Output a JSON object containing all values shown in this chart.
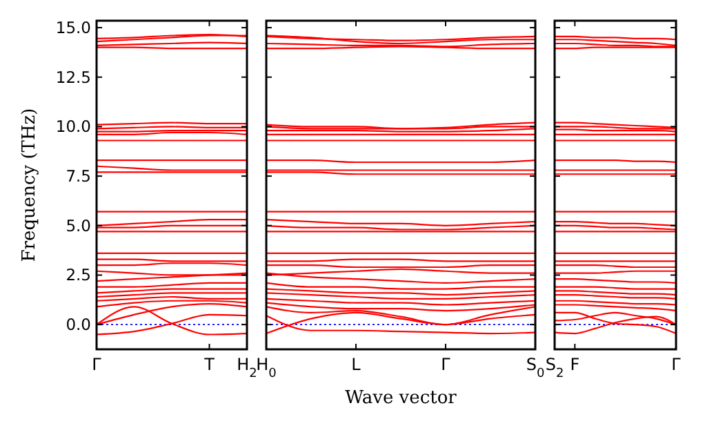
{
  "chart_data": [
    {
      "type": "line",
      "ylabel": "Frequency (THz)",
      "categories": [
        "Γ",
        null,
        null,
        "T",
        "H$_{2}$"
      ],
      "ylim": [
        -1.25,
        15.35
      ],
      "yticks": [
        {
          "value": 0,
          "label": "0.0"
        },
        {
          "value": 2.5,
          "label": "2.5"
        },
        {
          "value": 5,
          "label": "5.0"
        },
        {
          "value": 7.5,
          "label": "7.5"
        },
        {
          "value": 10,
          "label": "10.0"
        },
        {
          "value": 12.5,
          "label": "12.5"
        },
        {
          "value": 15,
          "label": "15.0"
        }
      ],
      "line_style": "solid",
      "ref_lines": [
        {
          "axis": "y",
          "value": 0,
          "color": "#0000ff",
          "line_style": "dotted"
        }
      ],
      "series": [
        {
          "color": "#ff0000",
          "values": [
            14.0,
            14.0,
            13.95,
            13.95,
            13.95
          ]
        },
        {
          "color": "#ff0000",
          "values": [
            14.1,
            14.15,
            14.2,
            14.25,
            14.2
          ]
        },
        {
          "color": "#ff0000",
          "values": [
            14.3,
            14.4,
            14.5,
            14.6,
            14.6
          ]
        },
        {
          "color": "#ff0000",
          "values": [
            14.45,
            14.5,
            14.6,
            14.65,
            14.55
          ]
        },
        {
          "color": "#ff0000",
          "values": [
            9.3,
            9.3,
            9.3,
            9.3,
            9.3
          ]
        },
        {
          "color": "#ff0000",
          "values": [
            9.6,
            9.6,
            9.7,
            9.7,
            9.6
          ]
        },
        {
          "color": "#ff0000",
          "values": [
            9.75,
            9.75,
            9.8,
            9.8,
            9.8
          ]
        },
        {
          "color": "#ff0000",
          "values": [
            9.9,
            9.95,
            10.0,
            9.95,
            9.95
          ]
        },
        {
          "color": "#ff0000",
          "values": [
            10.1,
            10.15,
            10.2,
            10.15,
            10.15
          ]
        },
        {
          "color": "#ff0000",
          "values": [
            7.7,
            7.7,
            7.7,
            7.7,
            7.7
          ]
        },
        {
          "color": "#ff0000",
          "values": [
            8.0,
            7.9,
            7.8,
            7.8,
            7.8
          ]
        },
        {
          "color": "#ff0000",
          "values": [
            8.3,
            8.3,
            8.3,
            8.3,
            8.3
          ]
        },
        {
          "color": "#ff0000",
          "values": [
            4.7,
            4.7,
            4.7,
            4.7,
            4.7
          ]
        },
        {
          "color": "#ff0000",
          "values": [
            4.9,
            4.9,
            5.0,
            5.0,
            5.0
          ]
        },
        {
          "color": "#ff0000",
          "values": [
            5.0,
            5.1,
            5.2,
            5.3,
            5.3
          ]
        },
        {
          "color": "#ff0000",
          "values": [
            5.7,
            5.7,
            5.7,
            5.7,
            5.7
          ]
        },
        {
          "color": "#ff0000",
          "values": [
            3.6,
            3.6,
            3.6,
            3.6,
            3.6
          ]
        },
        {
          "color": "#ff0000",
          "values": [
            3.3,
            3.3,
            3.2,
            3.2,
            3.2
          ]
        },
        {
          "color": "#ff0000",
          "values": [
            3.0,
            3.0,
            3.1,
            3.1,
            3.0
          ]
        },
        {
          "color": "#ff0000",
          "values": [
            2.7,
            2.6,
            2.5,
            2.5,
            2.5
          ]
        },
        {
          "color": "#ff0000",
          "values": [
            2.2,
            2.3,
            2.4,
            2.5,
            2.6
          ]
        },
        {
          "color": "#ff0000",
          "values": [
            1.9,
            1.9,
            2.0,
            2.1,
            2.1
          ]
        },
        {
          "color": "#ff0000",
          "values": [
            1.6,
            1.7,
            1.8,
            1.8,
            1.8
          ]
        },
        {
          "color": "#ff0000",
          "values": [
            1.4,
            1.5,
            1.6,
            1.6,
            1.6
          ]
        },
        {
          "color": "#ff0000",
          "values": [
            1.2,
            1.3,
            1.4,
            1.3,
            1.3
          ]
        },
        {
          "color": "#ff0000",
          "values": [
            0.9,
            1.1,
            1.2,
            1.2,
            1.1
          ]
        },
        {
          "color": "#ff0000",
          "values": [
            0,
            0.9,
            0.05,
            -0.5,
            -0.45
          ]
        },
        {
          "color": "#ff0000",
          "values": [
            -0.5,
            -0.35,
            0.05,
            0.5,
            0.45
          ]
        },
        {
          "color": "#ff0000",
          "values": [
            0,
            0.5,
            0.9,
            1.05,
            0.9
          ]
        }
      ]
    },
    {
      "type": "line",
      "xlabel": "Wave vector",
      "categories": [
        "H$_{0}$",
        null,
        "L",
        null,
        "Γ",
        null,
        "S$_{0}$"
      ],
      "ylim": [
        -1.25,
        15.35
      ],
      "yticks": [
        {
          "value": 0,
          "label": null
        },
        {
          "value": 2.5,
          "label": null
        },
        {
          "value": 5,
          "label": null
        },
        {
          "value": 7.5,
          "label": null
        },
        {
          "value": 10,
          "label": null
        },
        {
          "value": 12.5,
          "label": null
        },
        {
          "value": 15,
          "label": null
        }
      ],
      "tick_labels": "x",
      "line_style": "solid",
      "ref_lines": [
        {
          "axis": "y",
          "value": 0,
          "color": "#0000ff",
          "line_style": "dotted"
        }
      ],
      "series": [
        {
          "color": "#ff0000",
          "values": [
            13.95,
            13.95,
            14.0,
            14.05,
            14.0,
            13.95,
            13.95
          ]
        },
        {
          "color": "#ff0000",
          "values": [
            14.2,
            14.15,
            14.1,
            14.1,
            14.05,
            14.15,
            14.2
          ]
        },
        {
          "color": "#ff0000",
          "values": [
            14.6,
            14.5,
            14.3,
            14.2,
            14.3,
            14.4,
            14.4
          ]
        },
        {
          "color": "#ff0000",
          "values": [
            14.55,
            14.45,
            14.4,
            14.35,
            14.4,
            14.5,
            14.55
          ]
        },
        {
          "color": "#ff0000",
          "values": [
            9.3,
            9.3,
            9.3,
            9.3,
            9.3,
            9.3,
            9.3
          ]
        },
        {
          "color": "#ff0000",
          "values": [
            9.6,
            9.6,
            9.6,
            9.6,
            9.6,
            9.6,
            9.6
          ]
        },
        {
          "color": "#ff0000",
          "values": [
            9.8,
            9.8,
            9.8,
            9.75,
            9.75,
            9.8,
            9.9
          ]
        },
        {
          "color": "#ff0000",
          "values": [
            10.0,
            9.9,
            9.9,
            9.9,
            9.9,
            10.0,
            10.0
          ]
        },
        {
          "color": "#ff0000",
          "values": [
            10.1,
            10.0,
            10.0,
            9.9,
            9.95,
            10.1,
            10.2
          ]
        },
        {
          "color": "#ff0000",
          "values": [
            7.7,
            7.7,
            7.6,
            7.6,
            7.6,
            7.6,
            7.6
          ]
        },
        {
          "color": "#ff0000",
          "values": [
            7.8,
            7.8,
            7.8,
            7.8,
            7.8,
            7.8,
            7.8
          ]
        },
        {
          "color": "#ff0000",
          "values": [
            8.3,
            8.3,
            8.2,
            8.2,
            8.2,
            8.2,
            8.3
          ]
        },
        {
          "color": "#ff0000",
          "values": [
            4.7,
            4.7,
            4.7,
            4.7,
            4.7,
            4.7,
            4.7
          ]
        },
        {
          "color": "#ff0000",
          "values": [
            5.0,
            4.9,
            4.9,
            4.8,
            4.8,
            4.9,
            5.0
          ]
        },
        {
          "color": "#ff0000",
          "values": [
            5.3,
            5.2,
            5.1,
            5.1,
            5.0,
            5.1,
            5.2
          ]
        },
        {
          "color": "#ff0000",
          "values": [
            5.7,
            5.7,
            5.7,
            5.7,
            5.7,
            5.7,
            5.7
          ]
        },
        {
          "color": "#ff0000",
          "values": [
            3.6,
            3.6,
            3.6,
            3.6,
            3.6,
            3.6,
            3.6
          ]
        },
        {
          "color": "#ff0000",
          "values": [
            3.2,
            3.2,
            3.3,
            3.3,
            3.2,
            3.2,
            3.2
          ]
        },
        {
          "color": "#ff0000",
          "values": [
            3.0,
            3.0,
            2.9,
            2.9,
            2.9,
            3.0,
            3.0
          ]
        },
        {
          "color": "#ff0000",
          "values": [
            2.5,
            2.6,
            2.7,
            2.8,
            2.7,
            2.6,
            2.6
          ]
        },
        {
          "color": "#ff0000",
          "values": [
            2.6,
            2.4,
            2.3,
            2.2,
            2.1,
            2.2,
            2.3
          ]
        },
        {
          "color": "#ff0000",
          "values": [
            2.1,
            1.9,
            1.9,
            1.8,
            1.8,
            1.9,
            1.9
          ]
        },
        {
          "color": "#ff0000",
          "values": [
            1.8,
            1.7,
            1.6,
            1.6,
            1.5,
            1.6,
            1.7
          ]
        },
        {
          "color": "#ff0000",
          "values": [
            1.6,
            1.5,
            1.4,
            1.3,
            1.3,
            1.4,
            1.5
          ]
        },
        {
          "color": "#ff0000",
          "values": [
            1.3,
            1.2,
            1.1,
            1.1,
            1.0,
            1.1,
            1.2
          ]
        },
        {
          "color": "#ff0000",
          "values": [
            1.1,
            0.9,
            0.8,
            0.8,
            0.7,
            0.8,
            1.0
          ]
        },
        {
          "color": "#ff0000",
          "values": [
            -0.45,
            0.3,
            0.6,
            0.3,
            0,
            0.3,
            0.5
          ]
        },
        {
          "color": "#ff0000",
          "values": [
            0.45,
            -0.3,
            -0.3,
            -0.35,
            -0.4,
            -0.45,
            -0.4
          ]
        },
        {
          "color": "#ff0000",
          "values": [
            0.9,
            0.6,
            0.7,
            0.4,
            0,
            0.5,
            0.9
          ]
        }
      ]
    },
    {
      "type": "line",
      "categories": [
        "S$_{2}$",
        "F",
        null,
        null,
        null,
        null,
        "Γ"
      ],
      "ylim": [
        -1.25,
        15.35
      ],
      "yticks": [
        {
          "value": 0,
          "label": null
        },
        {
          "value": 2.5,
          "label": null
        },
        {
          "value": 5,
          "label": null
        },
        {
          "value": 7.5,
          "label": null
        },
        {
          "value": 10,
          "label": null
        },
        {
          "value": 12.5,
          "label": null
        },
        {
          "value": 15,
          "label": null
        }
      ],
      "tick_labels": "x",
      "line_style": "solid",
      "ref_lines": [
        {
          "axis": "y",
          "value": 0,
          "color": "#0000ff",
          "line_style": "dotted"
        }
      ],
      "series": [
        {
          "color": "#ff0000",
          "values": [
            13.95,
            13.95,
            14.0,
            14.0,
            14.0,
            14.0,
            14.0
          ]
        },
        {
          "color": "#ff0000",
          "values": [
            14.2,
            14.2,
            14.15,
            14.1,
            14.1,
            14.05,
            14.05
          ]
        },
        {
          "color": "#ff0000",
          "values": [
            14.4,
            14.4,
            14.35,
            14.3,
            14.25,
            14.2,
            14.1
          ]
        },
        {
          "color": "#ff0000",
          "values": [
            14.55,
            14.55,
            14.5,
            14.5,
            14.45,
            14.45,
            14.4
          ]
        },
        {
          "color": "#ff0000",
          "values": [
            9.3,
            9.3,
            9.3,
            9.3,
            9.3,
            9.3,
            9.3
          ]
        },
        {
          "color": "#ff0000",
          "values": [
            9.6,
            9.6,
            9.6,
            9.6,
            9.6,
            9.6,
            9.6
          ]
        },
        {
          "color": "#ff0000",
          "values": [
            9.85,
            9.85,
            9.8,
            9.8,
            9.8,
            9.8,
            9.75
          ]
        },
        {
          "color": "#ff0000",
          "values": [
            10.0,
            10.0,
            10.0,
            9.95,
            9.9,
            9.9,
            9.9
          ]
        },
        {
          "color": "#ff0000",
          "values": [
            10.2,
            10.2,
            10.15,
            10.1,
            10.05,
            10.0,
            9.95
          ]
        },
        {
          "color": "#ff0000",
          "values": [
            7.6,
            7.6,
            7.6,
            7.6,
            7.6,
            7.6,
            7.6
          ]
        },
        {
          "color": "#ff0000",
          "values": [
            7.8,
            7.8,
            7.8,
            7.8,
            7.8,
            7.8,
            7.8
          ]
        },
        {
          "color": "#ff0000",
          "values": [
            8.3,
            8.3,
            8.3,
            8.3,
            8.25,
            8.25,
            8.2
          ]
        },
        {
          "color": "#ff0000",
          "values": [
            4.7,
            4.7,
            4.7,
            4.7,
            4.7,
            4.7,
            4.7
          ]
        },
        {
          "color": "#ff0000",
          "values": [
            5.0,
            5.0,
            4.95,
            4.9,
            4.9,
            4.85,
            4.8
          ]
        },
        {
          "color": "#ff0000",
          "values": [
            5.2,
            5.2,
            5.15,
            5.1,
            5.1,
            5.05,
            5.0
          ]
        },
        {
          "color": "#ff0000",
          "values": [
            5.7,
            5.7,
            5.7,
            5.7,
            5.7,
            5.7,
            5.7
          ]
        },
        {
          "color": "#ff0000",
          "values": [
            3.6,
            3.6,
            3.6,
            3.6,
            3.6,
            3.6,
            3.6
          ]
        },
        {
          "color": "#ff0000",
          "values": [
            3.2,
            3.2,
            3.2,
            3.2,
            3.2,
            3.2,
            3.2
          ]
        },
        {
          "color": "#ff0000",
          "values": [
            3.0,
            3.0,
            3.0,
            2.95,
            2.9,
            2.9,
            2.9
          ]
        },
        {
          "color": "#ff0000",
          "values": [
            2.6,
            2.6,
            2.6,
            2.65,
            2.7,
            2.7,
            2.7
          ]
        },
        {
          "color": "#ff0000",
          "values": [
            2.3,
            2.3,
            2.25,
            2.2,
            2.15,
            2.15,
            2.1
          ]
        },
        {
          "color": "#ff0000",
          "values": [
            1.9,
            1.9,
            1.9,
            1.85,
            1.8,
            1.8,
            1.8
          ]
        },
        {
          "color": "#ff0000",
          "values": [
            1.7,
            1.7,
            1.65,
            1.6,
            1.55,
            1.55,
            1.5
          ]
        },
        {
          "color": "#ff0000",
          "values": [
            1.5,
            1.5,
            1.45,
            1.4,
            1.35,
            1.35,
            1.3
          ]
        },
        {
          "color": "#ff0000",
          "values": [
            1.2,
            1.2,
            1.15,
            1.1,
            1.05,
            1.05,
            1.0
          ]
        },
        {
          "color": "#ff0000",
          "values": [
            1.0,
            1.0,
            0.95,
            0.9,
            0.85,
            0.8,
            0.7
          ]
        },
        {
          "color": "#ff0000",
          "values": [
            -0.4,
            -0.45,
            -0.2,
            0.1,
            0.3,
            0.4,
            0
          ]
        },
        {
          "color": "#ff0000",
          "values": [
            0.2,
            0.25,
            0.45,
            0.6,
            0.45,
            0.3,
            0
          ]
        },
        {
          "color": "#ff0000",
          "values": [
            0.6,
            0.6,
            0.3,
            0.05,
            0,
            -0.1,
            -0.45
          ]
        }
      ]
    }
  ]
}
